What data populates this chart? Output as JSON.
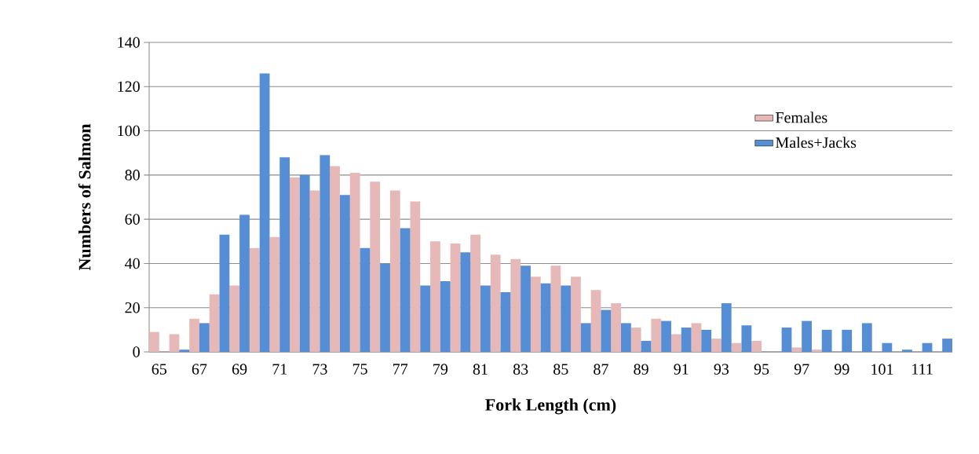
{
  "chart_data": {
    "type": "bar",
    "xlabel": "Fork Length (cm)",
    "ylabel": "Numbers of Salmon",
    "categories": [
      "65",
      null,
      "67",
      null,
      "69",
      null,
      "71",
      null,
      "73",
      null,
      "75",
      null,
      "77",
      null,
      "79",
      null,
      "81",
      null,
      "83",
      null,
      "85",
      null,
      "87",
      null,
      "89",
      null,
      "91",
      null,
      "93",
      null,
      "95",
      null,
      "97",
      null,
      "99",
      null,
      "101",
      null,
      "111",
      null
    ],
    "series": [
      {
        "name": "Females",
        "color": "#e6b9b8",
        "values": [
          9,
          8,
          15,
          26,
          30,
          47,
          52,
          79,
          73,
          84,
          81,
          77,
          73,
          68,
          50,
          49,
          53,
          44,
          42,
          34,
          39,
          34,
          28,
          22,
          11,
          15,
          8,
          13,
          6,
          4,
          5,
          null,
          2,
          1,
          null,
          null,
          null,
          null,
          null,
          null
        ]
      },
      {
        "name": "Males+Jacks",
        "color": "#558ed5",
        "values": [
          null,
          1,
          13,
          53,
          62,
          126,
          88,
          80,
          89,
          71,
          47,
          40,
          56,
          30,
          32,
          45,
          30,
          27,
          39,
          31,
          30,
          13,
          19,
          13,
          5,
          14,
          11,
          10,
          22,
          12,
          null,
          11,
          14,
          10,
          10,
          13,
          4,
          1,
          4,
          6
        ]
      }
    ],
    "ylim": [
      0,
      140
    ],
    "yticks": [
      0,
      20,
      40,
      60,
      80,
      100,
      120,
      140
    ],
    "grid": "y",
    "legend": "top right"
  }
}
